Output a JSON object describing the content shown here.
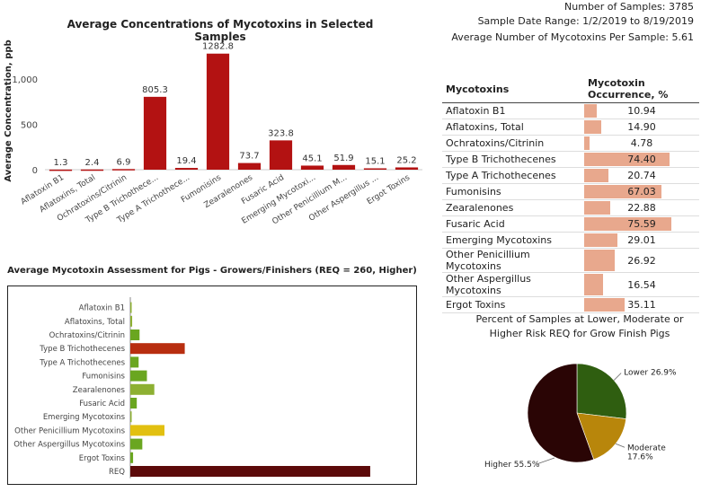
{
  "stats": {
    "samples": "Number of Samples: 3785",
    "date_range": "Sample Date Range: 1/2/2019 to 8/19/2019",
    "avg_per_sample": "Average Number of Mycotoxins Per Sample: 5.61"
  },
  "chart_data": [
    {
      "type": "bar",
      "title": "Average Concentrations of Mycotoxins in Selected Samples",
      "ylabel": "Average Concentration, ppb",
      "xlabel": "",
      "ylim": [
        0,
        1300
      ],
      "yticks": [
        0,
        500,
        1000
      ],
      "ytick_labels": [
        "0",
        "500",
        "1,000"
      ],
      "color": "#b31212",
      "categories": [
        "Aflatoxin B1",
        "Aflatoxins, Total",
        "Ochratoxins/Citrinin",
        "Type B Trichothece...",
        "Type A Trichothece...",
        "Fumonisins",
        "Zearalenones",
        "Fusaric Acid",
        "Emerging Mycotoxi...",
        "Other Penicillium M...",
        "Other Aspergillus ...",
        "Ergot Toxins"
      ],
      "values": [
        1.3,
        2.4,
        6.9,
        805.3,
        19.4,
        1282.8,
        73.7,
        323.8,
        45.1,
        51.9,
        15.1,
        25.2
      ],
      "value_labels": [
        "1.3",
        "2.4",
        "6.9",
        "805.3",
        "19.4",
        "1282.8",
        "73.7",
        "323.8",
        "45.1",
        "51.9",
        "15.1",
        "25.2"
      ]
    },
    {
      "type": "table",
      "columns": [
        "Mycotoxins",
        "Mycotoxin Occurrence, %"
      ],
      "bar_color": "#e8a88d",
      "rows": [
        {
          "name": "Aflatoxin B1",
          "value": "10.94"
        },
        {
          "name": "Aflatoxins, Total",
          "value": "14.90"
        },
        {
          "name": "Ochratoxins/Citrinin",
          "value": "4.78"
        },
        {
          "name": "Type B Trichothecenes",
          "value": "74.40"
        },
        {
          "name": "Type A Trichothecenes",
          "value": "20.74"
        },
        {
          "name": "Fumonisins",
          "value": "67.03"
        },
        {
          "name": "Zearalenones",
          "value": "22.88"
        },
        {
          "name": "Fusaric Acid",
          "value": "75.59"
        },
        {
          "name": "Emerging Mycotoxins",
          "value": "29.01"
        },
        {
          "name": "Other Penicillium Mycotoxins",
          "value": "26.92"
        },
        {
          "name": "Other Aspergillus Mycotoxins",
          "value": "16.54"
        },
        {
          "name": "Ergot Toxins",
          "value": "35.11"
        }
      ]
    },
    {
      "type": "bar",
      "orientation": "horizontal",
      "title": "Average Mycotoxin Assessment for Pigs - Growers/Finishers (REQ = 260, Higher)",
      "xmax": 300,
      "categories": [
        "Aflatoxin B1",
        "Aflatoxins, Total",
        "Ochratoxins/Citrinin",
        "Type B Trichothecenes",
        "Type A Trichothecenes",
        "Fumonisins",
        "Zearalenones",
        "Fusaric Acid",
        "Emerging Mycotoxins",
        "Other Penicillium Mycotoxins",
        "Other Aspergillus Mycotoxins",
        "Ergot Toxins",
        "REQ"
      ],
      "values": [
        1,
        2,
        10,
        59,
        9,
        18,
        26,
        7,
        1,
        37,
        13,
        3,
        260
      ],
      "colors": [
        "#8db032",
        "#8db032",
        "#6aa620",
        "#b82e10",
        "#6aa620",
        "#6aa620",
        "#8db032",
        "#6aa620",
        "#8db032",
        "#e2c010",
        "#6aa620",
        "#6aa620",
        "#5c0a0a"
      ]
    },
    {
      "type": "pie",
      "title": "Percent of Samples at Lower, Moderate or Higher Risk REQ for Grow Finish Pigs",
      "slices": [
        {
          "label": "Lower",
          "value": 26.9,
          "text": "Lower 26.9%",
          "color": "#2f5e10"
        },
        {
          "label": "Moderate",
          "value": 17.6,
          "text_line1": "Moderate",
          "text_line2": "17.6%",
          "color": "#b8860b"
        },
        {
          "label": "Higher",
          "value": 55.5,
          "text": "Higher 55.5%",
          "color": "#2a0505"
        }
      ]
    }
  ]
}
